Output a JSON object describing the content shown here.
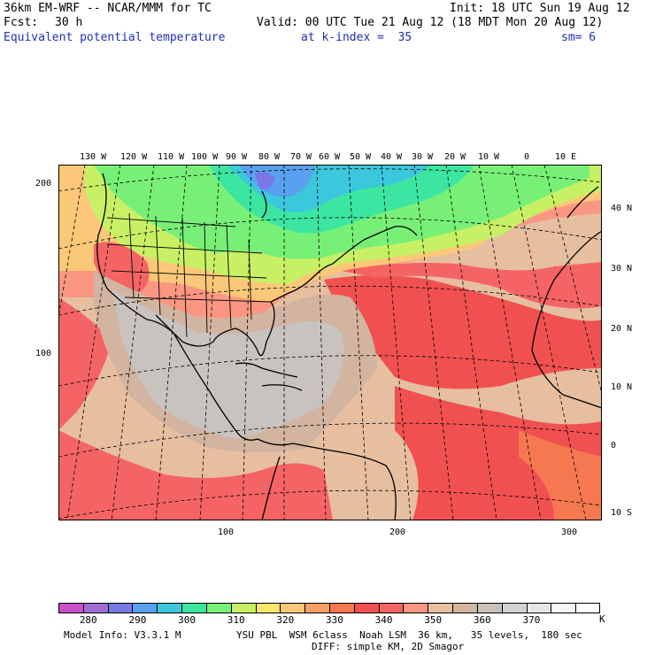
{
  "header": {
    "model": "36km EM-WRF -- NCAR/MMM for TC",
    "init": "Init: 18 UTC Sun 19 Aug 12",
    "fcst_label": "Fcst:",
    "fcst_value": "30 h",
    "valid": "Valid: 00 UTC Tue 21 Aug 12 (18 MDT Mon 20 Aug 12)",
    "field": "Equivalent potential temperature",
    "level": "at k-index =  35",
    "smooth": "sm= 6"
  },
  "map": {
    "lon_labels": [
      "130 W",
      "120 W",
      "110 W",
      "100 W",
      "90 W",
      "80 W",
      "70 W",
      "60 W",
      "50 W",
      "40 W",
      "30 W",
      "20 W",
      "10 W",
      "0",
      "10 E"
    ],
    "lat_labels": [
      "40 N",
      "30 N",
      "20 N",
      "10 N",
      "0",
      "10 S"
    ],
    "grid_y_labels": [
      "200",
      "100"
    ],
    "grid_x_labels": [
      "100",
      "200",
      "300"
    ]
  },
  "colorbar": {
    "colors": [
      "#c850c8",
      "#a06ed2",
      "#7878e6",
      "#5aa0f0",
      "#3cc8dc",
      "#3ce6a0",
      "#78f078",
      "#c8f064",
      "#fae66e",
      "#fac878",
      "#faa064",
      "#f57850",
      "#f05050",
      "#f56464",
      "#fa9682",
      "#e6bea0",
      "#d2b4a0",
      "#c8c3be",
      "#d2d2d2",
      "#e6e6e6",
      "#f5f5f5",
      "#ffffff"
    ],
    "tick_labels": [
      "280",
      "290",
      "300",
      "310",
      "320",
      "330",
      "340",
      "350",
      "360",
      "370"
    ],
    "unit": "K"
  },
  "footer": {
    "model_info": "Model Info: V3.3.1 M",
    "physics": "YSU PBL  WSM 6class  Noah LSM  36 km,   35 levels,  180 sec",
    "diff": "DIFF: simple KM, 2D Smagor"
  }
}
